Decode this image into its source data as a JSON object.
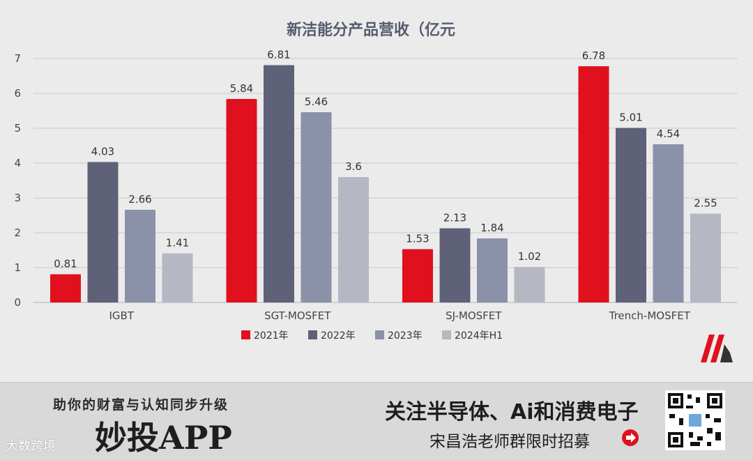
{
  "colors": {
    "series": [
      "#e0101f",
      "#5e6178",
      "#8c91aa",
      "#b5b7c3"
    ],
    "brand_red": "#e0101f",
    "brand_dark": "#333333"
  },
  "chart_data": {
    "type": "bar",
    "title": "新洁能分产品营收（亿元",
    "categories": [
      "IGBT",
      "SGT-MOSFET",
      "SJ-MOSFET",
      "Trench-MOSFET"
    ],
    "series": [
      {
        "name": "2021年",
        "values": [
          0.81,
          5.84,
          1.53,
          6.78
        ]
      },
      {
        "name": "2022年",
        "values": [
          4.03,
          6.81,
          2.13,
          5.01
        ]
      },
      {
        "name": "2023年",
        "values": [
          2.66,
          5.46,
          1.84,
          4.54
        ]
      },
      {
        "name": "2024年H1",
        "values": [
          1.41,
          3.6,
          1.02,
          2.55
        ]
      }
    ],
    "y_ticks": [
      "0",
      "1",
      "2",
      "3",
      "4",
      "5",
      "6",
      "7"
    ],
    "ylim": [
      0,
      7
    ],
    "grid": true,
    "legend_position": "bottom"
  },
  "logo": {
    "icon": "m-brand-logo-icon"
  },
  "banner": {
    "slogan": "助你的财富与认知同步升级",
    "app_name": "妙投APP",
    "watermark": "大数跨境",
    "headline": "关注半导体、Ai和消费电子",
    "subline": "宋昌浩老师群限时招募",
    "arrow_icon": "arrow-right-circle-icon",
    "qr_icon": "qr-code-icon"
  }
}
